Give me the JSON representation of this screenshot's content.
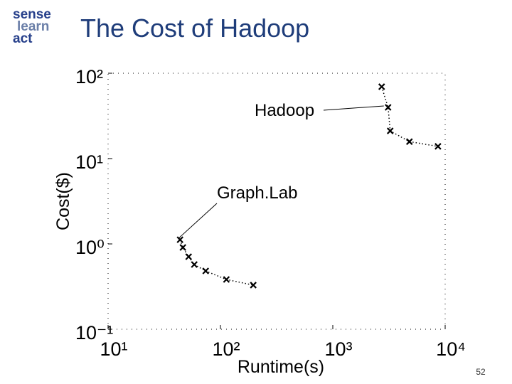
{
  "slide": {
    "title": "The Cost of Hadoop",
    "logo": [
      "sense",
      "learn",
      "act"
    ],
    "page_number": "52"
  },
  "chart_data": {
    "type": "scatter",
    "xlabel": "Runtime(s)",
    "ylabel": "Cost($)",
    "xscale": "log",
    "yscale": "log",
    "xlim": [
      10,
      10000
    ],
    "ylim": [
      0.1,
      100
    ],
    "xticks": [
      {
        "value": 10,
        "label": "10¹"
      },
      {
        "value": 100,
        "label": "10²"
      },
      {
        "value": 1000,
        "label": "10³"
      },
      {
        "value": 10000,
        "label": "10⁴"
      }
    ],
    "yticks": [
      {
        "value": 0.1,
        "label": "10⁻¹"
      },
      {
        "value": 1,
        "label": "10⁰"
      },
      {
        "value": 10,
        "label": "10¹"
      },
      {
        "value": 100,
        "label": "10²"
      }
    ],
    "series": [
      {
        "name": "Hadoop",
        "color": "#000000",
        "x": [
          2723,
          3105,
          3243,
          4808,
          8630
        ],
        "values": [
          69.5,
          39.8,
          21.1,
          15.8,
          13.9
        ]
      },
      {
        "name": "Graph.Lab",
        "color": "#000000",
        "x": [
          43.7,
          46.3,
          52.1,
          58.5,
          73.9,
          113,
          196
        ],
        "values": [
          1.12,
          0.908,
          0.708,
          0.573,
          0.482,
          0.383,
          0.329
        ]
      }
    ]
  }
}
